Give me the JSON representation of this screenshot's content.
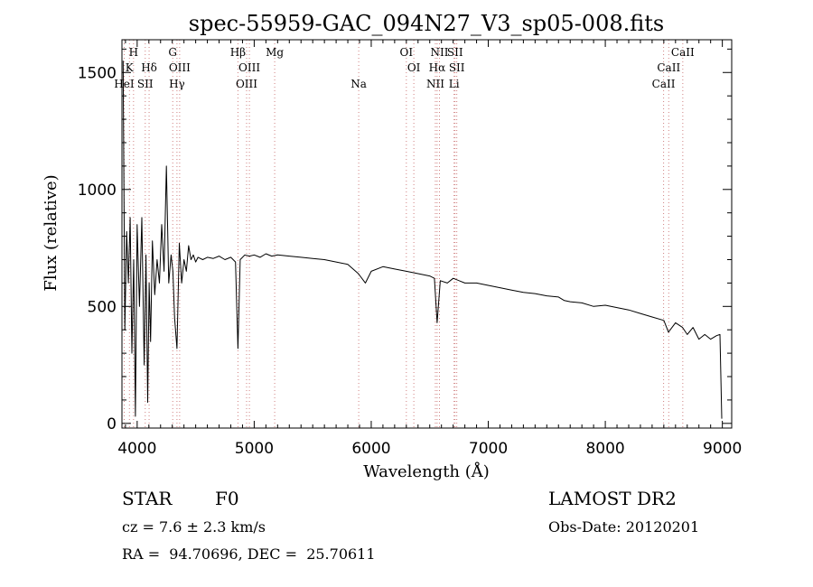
{
  "header": {
    "title": "spec-55959-GAC_094N27_V3_sp05-008.fits"
  },
  "info": {
    "object_class": "STAR",
    "subclass": "F0",
    "cz": "cz = 7.6 ± 2.3 km/s",
    "coords": "RA =  94.70696, DEC =  25.70611",
    "survey": "LAMOST DR2",
    "obs_date": "Obs-Date: 20120201"
  },
  "chart_data": {
    "type": "line",
    "title": "spec-55959-GAC_094N27_V3_sp05-008.fits",
    "xlabel": "Wavelength (Å)",
    "ylabel": "Flux (relative)",
    "xlim": [
      3870,
      9080
    ],
    "ylim": [
      -20,
      1640
    ],
    "xticks": [
      4000,
      5000,
      6000,
      7000,
      8000,
      9000
    ],
    "xtick_labels": [
      "4000",
      "5000",
      "6000",
      "7000",
      "8000",
      "9000"
    ],
    "yticks": [
      0,
      500,
      1000,
      1500
    ],
    "ytick_labels": [
      "0",
      "500",
      "1000",
      "1500"
    ],
    "grid": false,
    "line_color": "#000000",
    "marker_color": "#d08080",
    "series": [
      {
        "x": [
          3880,
          3895,
          3910,
          3925,
          3940,
          3955,
          3970,
          3985,
          4000,
          4020,
          4040,
          4060,
          4075,
          4090,
          4102,
          4115,
          4130,
          4150,
          4170,
          4190,
          4210,
          4230,
          4250,
          4270,
          4290,
          4305,
          4320,
          4340,
          4360,
          4380,
          4400,
          4420,
          4440,
          4460,
          4480,
          4500,
          4520,
          4560,
          4600,
          4650,
          4700,
          4750,
          4800,
          4840,
          4861,
          4880,
          4920,
          4960,
          5000,
          5050,
          5100,
          5150,
          5200,
          5300,
          5400,
          5500,
          5600,
          5700,
          5800,
          5890,
          5950,
          6000,
          6100,
          6200,
          6300,
          6400,
          6500,
          6540,
          6563,
          6590,
          6650,
          6700,
          6800,
          6900,
          7000,
          7100,
          7200,
          7300,
          7400,
          7500,
          7600,
          7650,
          7700,
          7800,
          7900,
          8000,
          8100,
          8200,
          8300,
          8400,
          8500,
          8540,
          8600,
          8660,
          8700,
          8750,
          8800,
          8850,
          8900,
          8950,
          8980,
          8995
        ],
        "y": [
          1550,
          400,
          820,
          600,
          880,
          300,
          700,
          30,
          850,
          500,
          880,
          250,
          720,
          90,
          600,
          350,
          780,
          550,
          700,
          600,
          850,
          650,
          1100,
          600,
          720,
          650,
          450,
          320,
          770,
          600,
          700,
          650,
          760,
          700,
          720,
          690,
          710,
          700,
          710,
          705,
          715,
          700,
          710,
          690,
          320,
          700,
          720,
          715,
          720,
          710,
          725,
          715,
          720,
          715,
          710,
          705,
          700,
          690,
          680,
          640,
          600,
          650,
          670,
          660,
          650,
          640,
          630,
          620,
          430,
          610,
          600,
          620,
          600,
          600,
          590,
          580,
          570,
          560,
          555,
          545,
          540,
          525,
          520,
          515,
          500,
          505,
          495,
          485,
          470,
          455,
          440,
          390,
          430,
          410,
          380,
          410,
          360,
          380,
          360,
          375,
          380,
          20
        ]
      }
    ],
    "spectral_lines": [
      {
        "label": "H",
        "wavelength": 3969,
        "row": 0
      },
      {
        "label": "K",
        "wavelength": 3934,
        "row": 1
      },
      {
        "label": "HeI",
        "wavelength": 3889,
        "row": 2
      },
      {
        "label": "Hδ",
        "wavelength": 4102,
        "row": 1
      },
      {
        "label": "SII",
        "wavelength": 4069,
        "row": 2
      },
      {
        "label": "G",
        "wavelength": 4304,
        "row": 0
      },
      {
        "label": "OIII",
        "wavelength": 4363,
        "row": 1
      },
      {
        "label": "Hγ",
        "wavelength": 4340,
        "row": 2
      },
      {
        "label": "Hβ",
        "wavelength": 4861,
        "row": 0
      },
      {
        "label": "OIII",
        "wavelength": 4959,
        "row": 1
      },
      {
        "label": "OIII",
        "wavelength": 4935,
        "row": 2
      },
      {
        "label": "Mg",
        "wavelength": 5175,
        "row": 0
      },
      {
        "label": "Na",
        "wavelength": 5893,
        "row": 2
      },
      {
        "label": "OI",
        "wavelength": 6300,
        "row": 0
      },
      {
        "label": "OI",
        "wavelength": 6364,
        "row": 1
      },
      {
        "label": "NII",
        "wavelength": 6583,
        "row": 0
      },
      {
        "label": "SII",
        "wavelength": 6716,
        "row": 0
      },
      {
        "label": "Hα",
        "wavelength": 6563,
        "row": 1
      },
      {
        "label": "SII",
        "wavelength": 6731,
        "row": 1
      },
      {
        "label": "NII",
        "wavelength": 6548,
        "row": 2
      },
      {
        "label": "Li",
        "wavelength": 6708,
        "row": 2
      },
      {
        "label": "CaII",
        "wavelength": 8662,
        "row": 0
      },
      {
        "label": "CaII",
        "wavelength": 8542,
        "row": 1
      },
      {
        "label": "CaII",
        "wavelength": 8498,
        "row": 2
      }
    ]
  }
}
